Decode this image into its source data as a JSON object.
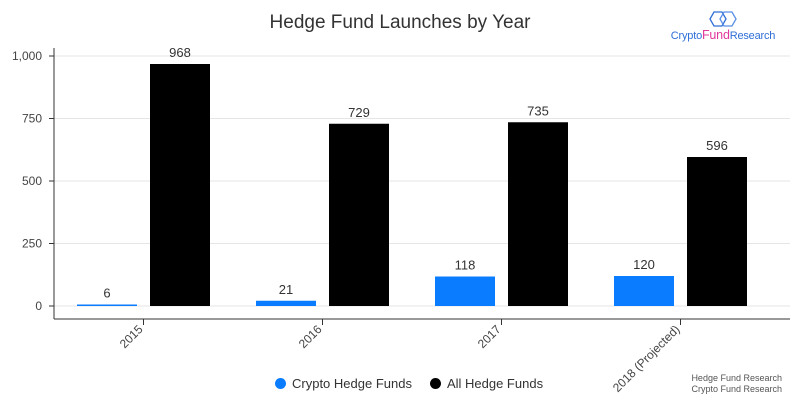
{
  "title": "Hedge Fund Launches by Year",
  "logo": {
    "prefix": "Crypto",
    "middle": "Fund",
    "suffix": "Research"
  },
  "source": {
    "line1": "Hedge Fund Research",
    "line2": "Crypto Fund Research"
  },
  "colors": {
    "crypto": "#0a7cff",
    "all": "#000000",
    "grid": "#e6e6e6",
    "axis": "#333333"
  },
  "chart_data": {
    "type": "bar",
    "title": "Hedge Fund Launches by Year",
    "categories": [
      "2015",
      "2016",
      "2017",
      "2018 (Projected)"
    ],
    "series": [
      {
        "name": "Crypto Hedge Funds",
        "values": [
          6,
          21,
          118,
          120
        ]
      },
      {
        "name": "All Hedge Funds",
        "values": [
          968,
          729,
          735,
          596
        ]
      }
    ],
    "ylim": [
      0,
      1000
    ],
    "yticks": [
      0,
      250,
      500,
      750,
      1000
    ],
    "ytick_labels": [
      "0",
      "250",
      "500",
      "750",
      "1,000"
    ],
    "xlabel": "",
    "ylabel": "",
    "grid": true,
    "legend": "bottom-center"
  }
}
